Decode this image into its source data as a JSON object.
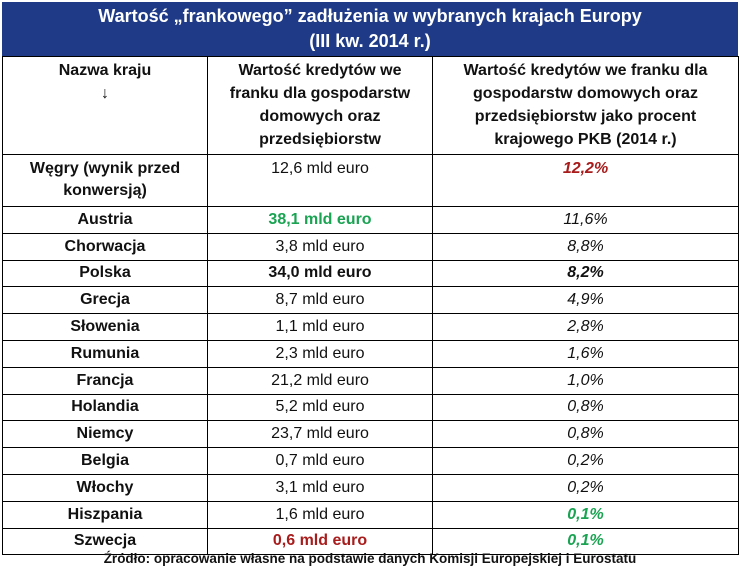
{
  "title": {
    "line1": "Wartość „frankowego” zadłużenia w wybranych krajach Europy",
    "line2": "(III kw. 2014 r.)"
  },
  "headers": {
    "country": "Nazwa kraju",
    "country_arrow": "↓",
    "value": "Wartość kredytów we franku dla gospodarstw domowych oraz przedsiębiorstw",
    "percent": "Wartość kredytów we franku dla gospodarstw domowych oraz przedsiębiorstw jako procent krajowego PKB (2014 r.)"
  },
  "rows": [
    {
      "country": "Węgry (wynik przed konwersją)",
      "value": "12,6 mld euro",
      "percent": "12,2%",
      "value_style": "",
      "percent_style": "red"
    },
    {
      "country": "Austria",
      "value": "38,1 mld euro",
      "percent": "11,6%",
      "value_style": "green",
      "percent_style": ""
    },
    {
      "country": "Chorwacja",
      "value": "3,8 mld euro",
      "percent": "8,8%",
      "value_style": "",
      "percent_style": ""
    },
    {
      "country": "Polska",
      "value": "34,0 mld euro",
      "percent": "8,2%",
      "value_style": "bold",
      "percent_style": "bold"
    },
    {
      "country": "Grecja",
      "value": "8,7 mld euro",
      "percent": "4,9%",
      "value_style": "",
      "percent_style": ""
    },
    {
      "country": "Słowenia",
      "value": "1,1 mld euro",
      "percent": "2,8%",
      "value_style": "",
      "percent_style": ""
    },
    {
      "country": "Rumunia",
      "value": "2,3 mld euro",
      "percent": "1,6%",
      "value_style": "",
      "percent_style": ""
    },
    {
      "country": "Francja",
      "value": "21,2 mld euro",
      "percent": "1,0%",
      "value_style": "",
      "percent_style": ""
    },
    {
      "country": "Holandia",
      "value": "5,2 mld euro",
      "percent": "0,8%",
      "value_style": "",
      "percent_style": ""
    },
    {
      "country": "Niemcy",
      "value": "23,7 mld euro",
      "percent": "0,8%",
      "value_style": "",
      "percent_style": ""
    },
    {
      "country": "Belgia",
      "value": "0,7 mld euro",
      "percent": "0,2%",
      "value_style": "",
      "percent_style": ""
    },
    {
      "country": "Włochy",
      "value": "3,1 mld euro",
      "percent": "0,2%",
      "value_style": "",
      "percent_style": ""
    },
    {
      "country": "Hiszpania",
      "value": "1,6 mld euro",
      "percent": "0,1%",
      "value_style": "",
      "percent_style": "green"
    },
    {
      "country": "Szwecja",
      "value": "0,6 mld euro",
      "percent": "0,1%",
      "value_style": "red",
      "percent_style": "green"
    }
  ],
  "colors": {
    "title_bg": "#1f3a86",
    "title_text": "#ffffff",
    "highlight_green": "#1aa352",
    "highlight_red": "#a81c1c"
  },
  "source": "Źródło: opracowanie własne na podstawie danych Komisji Europejskiej i Eurostatu"
}
